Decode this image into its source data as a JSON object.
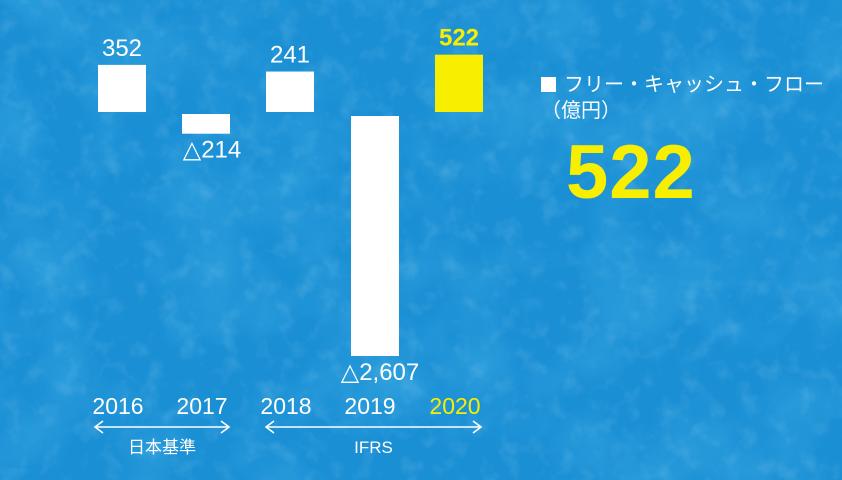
{
  "chart_data": {
    "type": "bar",
    "categories": [
      "2016",
      "2017",
      "2018",
      "2019",
      "2020"
    ],
    "values": [
      352,
      -214,
      241,
      -2607,
      522
    ],
    "value_labels": [
      "352",
      "△214",
      "241",
      "△2,607",
      "522"
    ],
    "highlight_index": 4,
    "series": [
      {
        "name": "フリー・キャッシュ・フロー",
        "values": [
          352,
          -214,
          241,
          -2607,
          522
        ]
      }
    ],
    "unit": "（億円）",
    "groups": [
      {
        "label": "日本基準",
        "categories": [
          "2016",
          "2017"
        ]
      },
      {
        "label": "IFRS",
        "categories": [
          "2018",
          "2019",
          "2020"
        ]
      }
    ],
    "ylim": [
      -2607,
      522
    ],
    "grid": false
  },
  "legend": {
    "label": "フリー・キャッシュ・フロー",
    "unit": "（億円）"
  },
  "headline_value": "522",
  "colors": {
    "background": "#1a8fd4",
    "bar": "#ffffff",
    "highlight": "#f8ef00",
    "text": "#ffffff"
  }
}
